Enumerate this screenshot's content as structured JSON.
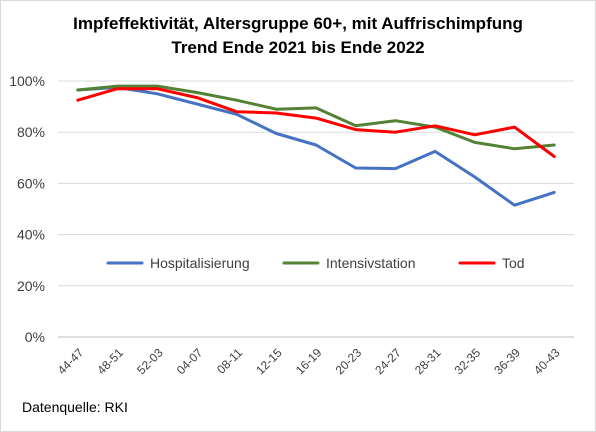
{
  "chart_data": {
    "type": "line",
    "title": "Impfeffektivität, Altersgruppe 60+, mit Auffrischimpfung",
    "subtitle": "Trend Ende 2021 bis Ende 2022",
    "categories": [
      "44-47",
      "48-51",
      "52-03",
      "04-07",
      "08-11",
      "12-15",
      "16-19",
      "20-23",
      "24-27",
      "28-31",
      "32-35",
      "36-39",
      "40-43"
    ],
    "ylim": [
      0,
      100
    ],
    "yticks": [
      0,
      20,
      40,
      60,
      80,
      100
    ],
    "ytick_labels": [
      "0%",
      "20%",
      "40%",
      "60%",
      "80%",
      "100%"
    ],
    "grid": true,
    "legend_position": "inside-middle",
    "series": [
      {
        "name": "Hospitalisierung",
        "color": "#4472c4",
        "values": [
          96.5,
          97.5,
          95,
          91,
          87,
          79.5,
          75,
          66,
          65.8,
          72.5,
          62.5,
          51.5,
          56.5
        ]
      },
      {
        "name": "Intensivstation",
        "color": "#548235",
        "values": [
          96.5,
          98,
          98,
          95.5,
          92.5,
          89,
          89.5,
          82.5,
          84.5,
          82,
          76,
          73.5,
          75
        ]
      },
      {
        "name": "Tod",
        "color": "#ff0000",
        "values": [
          92.5,
          97,
          97,
          93.5,
          88,
          87.5,
          85.5,
          81,
          80,
          82.5,
          79,
          82,
          70.5
        ]
      }
    ]
  },
  "footer": {
    "source": "Datenquelle: RKI"
  }
}
